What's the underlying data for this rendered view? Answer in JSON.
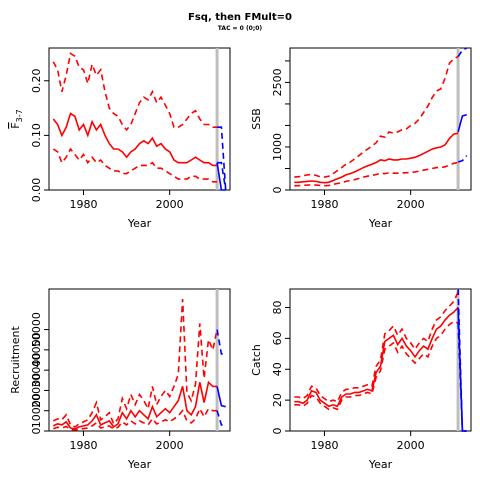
{
  "header": {
    "title": "Fsq, then FMult=0",
    "subtitle": "TAC = 0 (0;0)"
  },
  "colors": {
    "historic": "#ff0000",
    "projection": "#0000ff",
    "divider": "#bebebe",
    "axis": "#000000"
  },
  "chart_data": [
    {
      "type": "line",
      "title": "",
      "xlabel": "Year",
      "ylabel_parts": {
        "symbol": "F",
        "subscript": "3-7"
      },
      "xlim": [
        1972,
        2014
      ],
      "ylim": [
        0,
        0.26
      ],
      "xticks": [
        1980,
        2000
      ],
      "yticks": [
        0.0,
        0.1,
        0.2
      ],
      "ytick_labels": [
        "0.00",
        "0.10",
        "0.20"
      ],
      "divider_x": 2011,
      "historic": {
        "x": [
          1973,
          1974,
          1975,
          1976,
          1977,
          1978,
          1979,
          1980,
          1981,
          1982,
          1983,
          1984,
          1985,
          1986,
          1987,
          1988,
          1989,
          1990,
          1991,
          1992,
          1993,
          1994,
          1995,
          1996,
          1997,
          1998,
          1999,
          2000,
          2001,
          2002,
          2003,
          2004,
          2005,
          2006,
          2007,
          2008,
          2009,
          2010,
          2011
        ],
        "mid": [
          0.13,
          0.12,
          0.1,
          0.115,
          0.14,
          0.135,
          0.11,
          0.12,
          0.1,
          0.125,
          0.11,
          0.12,
          0.1,
          0.085,
          0.075,
          0.075,
          0.07,
          0.06,
          0.07,
          0.075,
          0.085,
          0.09,
          0.085,
          0.095,
          0.08,
          0.085,
          0.075,
          0.07,
          0.055,
          0.05,
          0.05,
          0.05,
          0.055,
          0.06,
          0.055,
          0.05,
          0.05,
          0.045,
          0.045
        ],
        "upper": [
          0.235,
          0.22,
          0.18,
          0.21,
          0.25,
          0.245,
          0.225,
          0.22,
          0.195,
          0.23,
          0.21,
          0.22,
          0.18,
          0.15,
          0.14,
          0.135,
          0.12,
          0.11,
          0.12,
          0.14,
          0.16,
          0.17,
          0.165,
          0.18,
          0.16,
          0.17,
          0.155,
          0.14,
          0.115,
          0.115,
          0.12,
          0.13,
          0.14,
          0.145,
          0.13,
          0.12,
          0.12,
          0.115,
          0.115
        ],
        "lower": [
          0.075,
          0.07,
          0.05,
          0.06,
          0.075,
          0.065,
          0.055,
          0.065,
          0.05,
          0.06,
          0.05,
          0.055,
          0.045,
          0.04,
          0.035,
          0.035,
          0.03,
          0.03,
          0.035,
          0.04,
          0.045,
          0.045,
          0.045,
          0.05,
          0.04,
          0.04,
          0.035,
          0.03,
          0.025,
          0.02,
          0.02,
          0.02,
          0.025,
          0.025,
          0.02,
          0.02,
          0.02,
          0.015,
          0.015
        ]
      },
      "projection": {
        "x": [
          2011,
          2012,
          2013
        ],
        "upper": [
          0.115,
          0.115,
          0.0
        ],
        "lower": [
          0.05,
          0.05,
          0.0
        ],
        "mid": [
          0.05,
          0.0,
          0.0
        ]
      }
    },
    {
      "type": "line",
      "title": "",
      "xlabel": "Year",
      "ylabel": "SSB",
      "xlim": [
        1972,
        2014
      ],
      "ylim": [
        0,
        3300
      ],
      "xticks": [
        1980,
        2000
      ],
      "yticks": [
        0,
        1000,
        2000,
        3000
      ],
      "ytick_labels": [
        "0",
        "1000",
        "2000",
        "3000"
      ],
      "extra_ytick_labels": [
        {
          "value": 500,
          "label": "500"
        },
        {
          "value": 1500,
          "label": "1500"
        },
        {
          "value": 2500,
          "label": "2500"
        }
      ],
      "divider_x": 2011,
      "historic": {
        "x": [
          1973,
          1974,
          1975,
          1976,
          1977,
          1978,
          1979,
          1980,
          1981,
          1982,
          1983,
          1984,
          1985,
          1986,
          1987,
          1988,
          1989,
          1990,
          1991,
          1992,
          1993,
          1994,
          1995,
          1996,
          1997,
          1998,
          1999,
          2000,
          2001,
          2002,
          2003,
          2004,
          2005,
          2006,
          2007,
          2008,
          2009,
          2010,
          2011
        ],
        "mid": [
          180,
          180,
          190,
          200,
          210,
          200,
          180,
          170,
          180,
          220,
          260,
          300,
          350,
          380,
          420,
          470,
          520,
          560,
          600,
          640,
          700,
          680,
          720,
          700,
          700,
          720,
          720,
          740,
          760,
          800,
          850,
          900,
          950,
          980,
          1000,
          1050,
          1200,
          1300,
          1320
        ],
        "upper": [
          300,
          310,
          330,
          350,
          360,
          340,
          310,
          300,
          320,
          380,
          450,
          520,
          600,
          650,
          720,
          800,
          880,
          950,
          1020,
          1100,
          1250,
          1230,
          1350,
          1320,
          1350,
          1400,
          1420,
          1500,
          1550,
          1650,
          1800,
          1950,
          2150,
          2300,
          2350,
          2600,
          2950,
          3050,
          3100
        ],
        "lower": [
          100,
          100,
          110,
          115,
          120,
          115,
          105,
          100,
          105,
          130,
          150,
          170,
          200,
          220,
          240,
          270,
          300,
          320,
          340,
          360,
          390,
          380,
          400,
          390,
          390,
          400,
          400,
          410,
          420,
          440,
          460,
          480,
          500,
          520,
          520,
          540,
          580,
          620,
          640
        ]
      },
      "projection": {
        "x": [
          2011,
          2012,
          2013
        ],
        "upper": [
          3100,
          3250,
          3300
        ],
        "mid": [
          1350,
          1720,
          1750
        ],
        "lower": [
          650,
          680,
          800
        ]
      }
    },
    {
      "type": "line",
      "title": "",
      "xlabel": "Year",
      "ylabel": "Recruitment",
      "xlim": [
        1972,
        2014
      ],
      "ylim": [
        0,
        70000
      ],
      "xticks": [
        1980,
        2000
      ],
      "yticks": [
        0,
        10000,
        20000,
        30000,
        40000,
        50000
      ],
      "ytick_labels": [
        "0",
        "10000",
        "20000",
        "30000",
        "40000",
        "50000"
      ],
      "divider_x": 2011,
      "historic": {
        "x": [
          1973,
          1974,
          1975,
          1976,
          1977,
          1978,
          1979,
          1980,
          1981,
          1982,
          1983,
          1984,
          1985,
          1986,
          1987,
          1988,
          1989,
          1990,
          1991,
          1992,
          1993,
          1994,
          1995,
          1996,
          1997,
          1998,
          1999,
          2000,
          2001,
          2002,
          2003,
          2004,
          2005,
          2006,
          2007,
          2008,
          2009,
          2010,
          2011
        ],
        "mid": [
          2500,
          3500,
          3000,
          4500,
          1500,
          1000,
          2000,
          2500,
          3000,
          5000,
          8000,
          3000,
          4000,
          5000,
          2000,
          3500,
          9000,
          6000,
          10000,
          7000,
          10000,
          8000,
          6000,
          12000,
          7000,
          9000,
          11000,
          9000,
          12000,
          15000,
          22000,
          10000,
          8000,
          12000,
          24000,
          14000,
          24000,
          22000,
          22000
        ],
        "upper": [
          5000,
          6000,
          5500,
          8000,
          3000,
          2000,
          3500,
          4500,
          5500,
          9000,
          14000,
          5500,
          7000,
          9000,
          3500,
          6000,
          16000,
          11000,
          18000,
          13000,
          18000,
          15000,
          11000,
          22000,
          13000,
          17000,
          20000,
          17000,
          22000,
          28000,
          65000,
          19000,
          15000,
          23000,
          53000,
          26000,
          45000,
          40000,
          50000
        ],
        "lower": [
          1200,
          1800,
          1500,
          2200,
          700,
          500,
          1000,
          1200,
          1500,
          2500,
          4000,
          1500,
          2000,
          2500,
          1000,
          1800,
          4500,
          3000,
          5000,
          3500,
          5000,
          4000,
          3000,
          6000,
          3500,
          4500,
          5500,
          4500,
          6000,
          7500,
          10000,
          5000,
          4000,
          6000,
          11000,
          7000,
          11000,
          10000,
          10000
        ]
      },
      "projection": {
        "x": [
          2011,
          2012,
          2013
        ],
        "upper": [
          50000,
          38000,
          38000
        ],
        "mid": [
          22000,
          12500,
          12000
        ],
        "lower": [
          10000,
          3000,
          3000
        ]
      }
    },
    {
      "type": "line",
      "title": "",
      "xlabel": "Year",
      "ylabel": "Catch",
      "xlim": [
        1972,
        2014
      ],
      "ylim": [
        0,
        92
      ],
      "xticks": [
        1980,
        2000
      ],
      "yticks": [
        0,
        20,
        40,
        60,
        80
      ],
      "ytick_labels": [
        "0",
        "20",
        "40",
        "60",
        "80"
      ],
      "divider_x": 2011,
      "historic": {
        "x": [
          1973,
          1974,
          1975,
          1976,
          1977,
          1978,
          1979,
          1980,
          1981,
          1982,
          1983,
          1984,
          1985,
          1986,
          1987,
          1988,
          1989,
          1990,
          1991,
          1992,
          1993,
          1994,
          1995,
          1996,
          1997,
          1998,
          1999,
          2000,
          2001,
          2002,
          2003,
          2004,
          2005,
          2006,
          2007,
          2008,
          2009,
          2010,
          2011
        ],
        "mid": [
          19,
          19,
          18,
          20,
          26,
          25,
          20,
          18,
          16,
          17,
          16,
          22,
          24,
          24,
          25,
          25,
          26,
          27,
          26,
          38,
          42,
          58,
          60,
          62,
          56,
          60,
          55,
          52,
          48,
          52,
          55,
          53,
          60,
          66,
          68,
          72,
          75,
          77,
          80
        ],
        "upper": [
          22,
          22,
          21,
          23,
          29,
          28,
          23,
          21,
          19,
          20,
          19,
          25,
          27,
          27,
          28,
          28,
          29,
          30,
          29,
          42,
          46,
          63,
          65,
          68,
          62,
          66,
          60,
          57,
          53,
          57,
          60,
          58,
          66,
          72,
          74,
          78,
          81,
          84,
          90
        ],
        "lower": [
          17,
          17,
          16,
          18,
          23,
          22,
          18,
          16,
          14,
          15,
          14,
          20,
          22,
          22,
          23,
          23,
          24,
          25,
          24,
          35,
          39,
          53,
          55,
          57,
          51,
          55,
          50,
          47,
          44,
          47,
          50,
          48,
          55,
          60,
          62,
          66,
          69,
          71,
          70
        ]
      },
      "projection": {
        "x": [
          2011,
          2012,
          2013
        ],
        "upper": [
          92,
          0,
          0
        ],
        "mid": [
          80,
          0,
          0
        ],
        "lower": [
          70,
          0,
          0
        ]
      }
    }
  ]
}
